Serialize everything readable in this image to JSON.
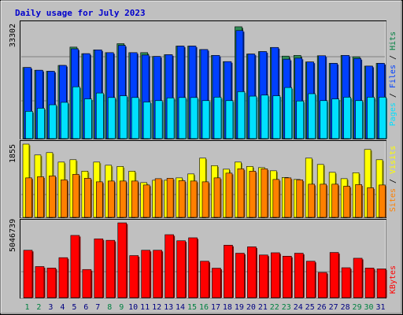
{
  "chart_data": {
    "type": "bar",
    "title": "Daily usage for July 2023",
    "categories": [
      "1",
      "2",
      "3",
      "4",
      "5",
      "6",
      "7",
      "8",
      "9",
      "10",
      "11",
      "12",
      "13",
      "14",
      "15",
      "16",
      "17",
      "18",
      "19",
      "20",
      "21",
      "22",
      "23",
      "24",
      "25",
      "26",
      "27",
      "28",
      "29",
      "30",
      "31"
    ],
    "weekend_days": [
      "1",
      "2",
      "8",
      "9",
      "15",
      "16",
      "22",
      "23",
      "29",
      "30"
    ],
    "panels": [
      {
        "name": "pages-files-hits",
        "ymax_label": "33302",
        "ylim": [
          0,
          33302
        ],
        "legend": [
          {
            "label": "Pages",
            "color": "#00e0ff"
          },
          {
            "label": "Files",
            "color": "#0040ff"
          },
          {
            "label": "Hits",
            "color": "#008040"
          }
        ],
        "series": [
          {
            "name": "Hits",
            "color": "#2e8b57",
            "values": [
              20600,
              19800,
              19500,
              21200,
              26500,
              24600,
              25700,
              24900,
              27500,
              24900,
              24900,
              23800,
              24300,
              26800,
              26800,
              25800,
              24100,
              22300,
              32400,
              24500,
              25200,
              26400,
              23900,
              24100,
              22200,
              24000,
              21800,
              24100,
              23700,
              21000,
              21800
            ]
          },
          {
            "name": "Files",
            "color": "#0040ff",
            "values": [
              20600,
              19800,
              19500,
              21200,
              26000,
              24600,
              25700,
              24900,
              27000,
              24900,
              24200,
              23800,
              24300,
              26800,
              26800,
              25800,
              24100,
              22300,
              31300,
              24500,
              25200,
              26400,
              23000,
              23300,
              22200,
              24000,
              21800,
              24100,
              23200,
              21000,
              21800
            ]
          },
          {
            "name": "Pages",
            "color": "#00e0ff",
            "values": [
              7900,
              8800,
              9800,
              10500,
              15000,
              11500,
              13200,
              11900,
              12400,
              11900,
              10600,
              11000,
              11800,
              11900,
              11900,
              11000,
              12000,
              11000,
              13600,
              12300,
              12600,
              12400,
              14800,
              10900,
              13000,
              11000,
              11500,
              12000,
              11000,
              12000,
              12000
            ]
          }
        ]
      },
      {
        "name": "visits-sites",
        "ymax_label": "1855",
        "ylim": [
          0,
          1855
        ],
        "legend": [
          {
            "label": "Sites",
            "color": "#ff8000"
          },
          {
            "label": "Visits",
            "color": "#ffff00"
          }
        ],
        "series": [
          {
            "name": "Visits",
            "color": "#ffff00",
            "values": [
              1855,
              1580,
              1640,
              1400,
              1460,
              1170,
              1400,
              1320,
              1290,
              1170,
              880,
              940,
              940,
              1000,
              1100,
              1500,
              1310,
              1220,
              1400,
              1290,
              1260,
              1180,
              1010,
              960,
              1500,
              1340,
              1140,
              980,
              1130,
              1720,
              1460
            ]
          },
          {
            "name": "Sites",
            "color": "#ff8000",
            "values": [
              1000,
              1030,
              1050,
              950,
              1090,
              990,
              900,
              920,
              920,
              920,
              820,
              980,
              990,
              930,
              920,
              900,
              1000,
              1120,
              1230,
              1170,
              1230,
              960,
              1000,
              950,
              840,
              840,
              840,
              790,
              830,
              750,
              820
            ]
          }
        ]
      },
      {
        "name": "kbytes",
        "ymax_label": "5046739",
        "ylim": [
          0,
          5046739
        ],
        "legend": [
          {
            "label": "KBytes",
            "color": "#ff0000"
          }
        ],
        "series": [
          {
            "name": "KBytes",
            "color": "#ff0000",
            "values": [
              3200000,
              2100000,
              2000000,
              2700000,
              4200000,
              1900000,
              3970000,
              3870000,
              5046739,
              2840000,
              3200000,
              3200000,
              4250000,
              3840000,
              4040000,
              2460000,
              1990000,
              3540000,
              3000000,
              3430000,
              2880000,
              3030000,
              2800000,
              3000000,
              2460000,
              1700000,
              3050000,
              2020000,
              2660000,
              2000000,
              1940000
            ]
          }
        ]
      }
    ]
  }
}
